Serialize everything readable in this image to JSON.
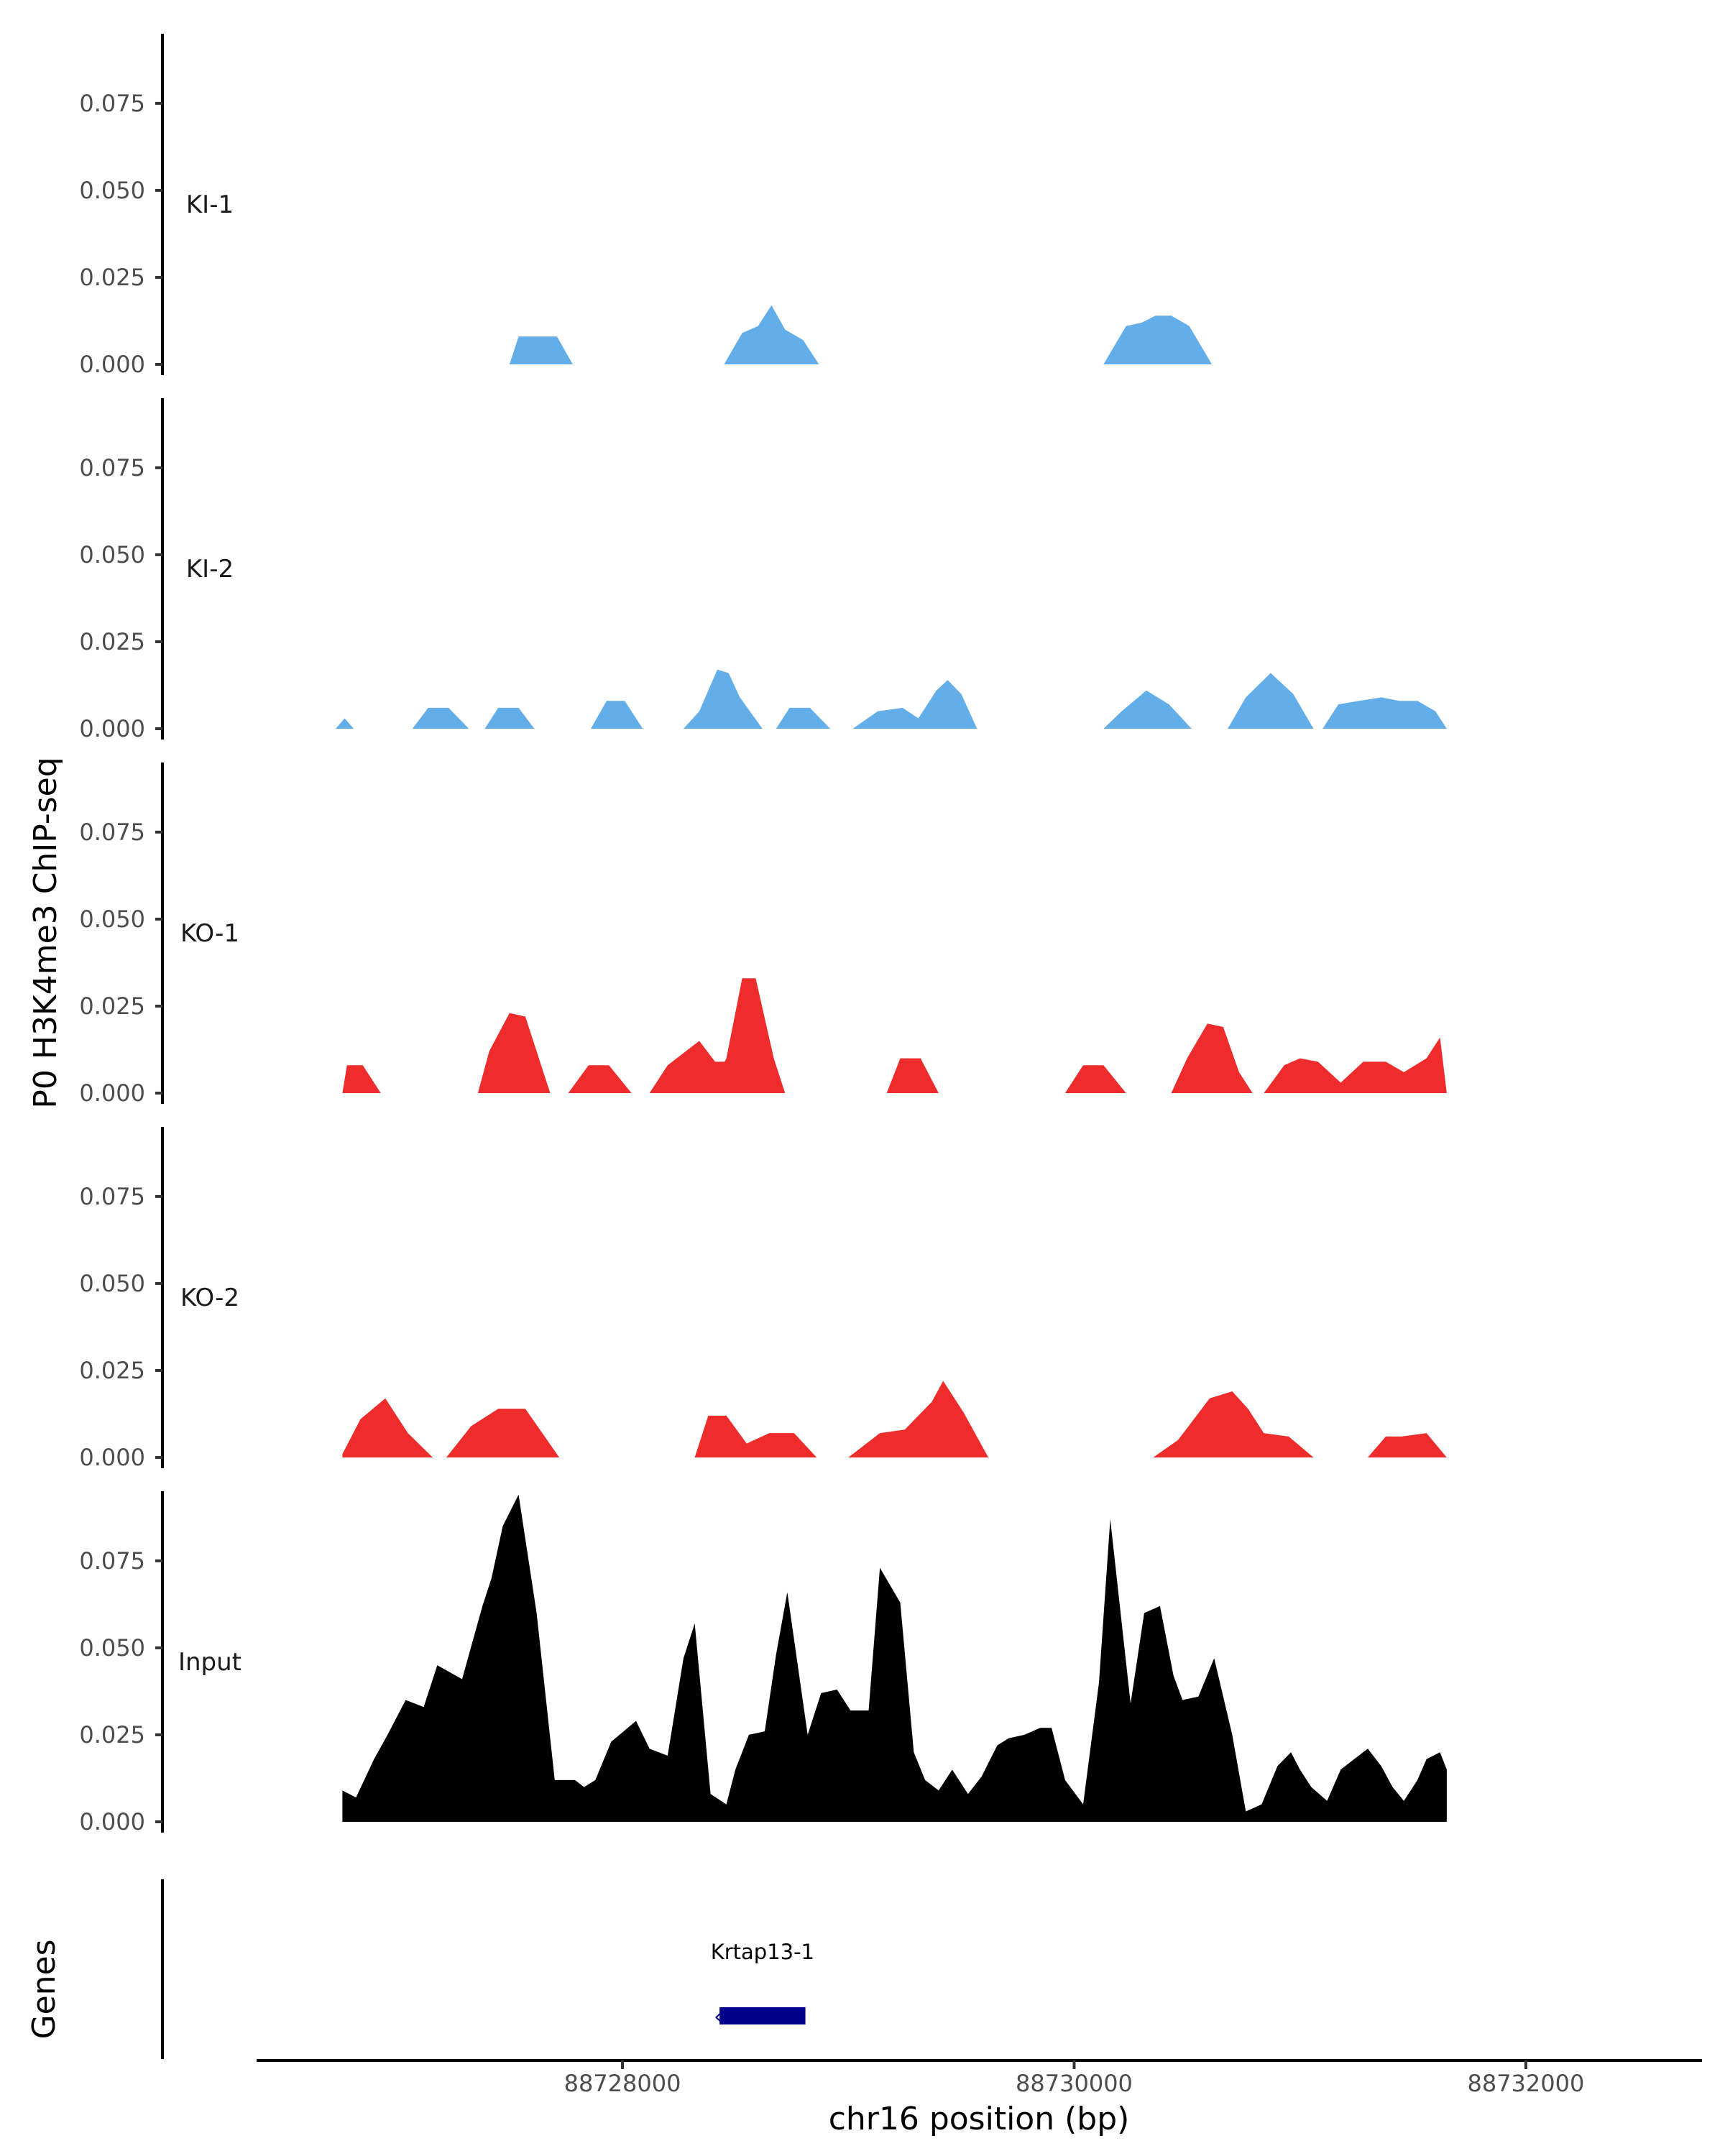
{
  "chart_data": {
    "type": "area",
    "title": "",
    "ylabel": "P0 H3K4me3 ChIP-seq",
    "xlabel": "chr16 position (bp)",
    "ylim": [
      0,
      0.095
    ],
    "xlim": [
      88726380,
      88732780
    ],
    "x_ticks": [
      88728000,
      88730000,
      88732000
    ],
    "x_tick_labels": [
      "88728000",
      "88730000",
      "88732000"
    ],
    "y_ticks": [
      0,
      0.025,
      0.05,
      0.075
    ],
    "y_tick_labels": [
      "0.000",
      "0.025",
      "0.050",
      "0.075"
    ],
    "colors": {
      "KI": "#63ade9",
      "KO": "#ee2c2c",
      "Input": "#000000",
      "gene": "#00008b"
    },
    "series": [
      {
        "name": "KI-1",
        "color": "#63ade9",
        "peaks": [
          {
            "x": [
              88727500,
              88727540,
              88727610,
              88727710,
              88727780
            ],
            "y": [
              0,
              0.008,
              0.008,
              0.008,
              0
            ]
          },
          {
            "x": [
              88728450,
              88728530,
              88728600,
              88728660,
              88728720,
              88728800,
              88728870
            ],
            "y": [
              0,
              0.009,
              0.011,
              0.017,
              0.01,
              0.007,
              0
            ]
          },
          {
            "x": [
              88730130,
              88730230,
              88730300,
              88730360,
              88730430,
              88730510,
              88730610
            ],
            "y": [
              0,
              0.011,
              0.012,
              0.014,
              0.014,
              0.011,
              0
            ]
          }
        ]
      },
      {
        "name": "KI-2",
        "color": "#63ade9",
        "peaks": [
          {
            "x": [
              88726730,
              88726770,
              88726810
            ],
            "y": [
              0,
              0.003,
              0
            ]
          },
          {
            "x": [
              88727070,
              88727140,
              88727230,
              88727320
            ],
            "y": [
              0,
              0.006,
              0.006,
              0
            ]
          },
          {
            "x": [
              88727390,
              88727450,
              88727540,
              88727610
            ],
            "y": [
              0,
              0.006,
              0.006,
              0
            ]
          },
          {
            "x": [
              88727860,
              88727930,
              88728010,
              88728090
            ],
            "y": [
              0,
              0.008,
              0.008,
              0
            ]
          },
          {
            "x": [
              88728270,
              88728340,
              88728420,
              88728470,
              88728520,
              88728620
            ],
            "y": [
              0,
              0.005,
              0.017,
              0.016,
              0.009,
              0
            ]
          },
          {
            "x": [
              88728680,
              88728740,
              88728830,
              88728920
            ],
            "y": [
              0,
              0.006,
              0.006,
              0
            ]
          },
          {
            "x": [
              88729020,
              88729130,
              88729240,
              88729310,
              88729390,
              88729440,
              88729500,
              88729570
            ],
            "y": [
              0,
              0.005,
              0.006,
              0.003,
              0.011,
              0.014,
              0.01,
              0
            ]
          },
          {
            "x": [
              88730130,
              88730210,
              88730320,
              88730420,
              88730520
            ],
            "y": [
              0,
              0.005,
              0.011,
              0.007,
              0
            ]
          },
          {
            "x": [
              88730680,
              88730760,
              88730870,
              88730970,
              88731060
            ],
            "y": [
              0,
              0.009,
              0.016,
              0.01,
              0
            ]
          },
          {
            "x": [
              88731100,
              88731170,
              88731260,
              88731360,
              88731440,
              88731520,
              88731600,
              88731650
            ],
            "y": [
              0,
              0.007,
              0.008,
              0.009,
              0.008,
              0.008,
              0.005,
              0
            ]
          }
        ]
      },
      {
        "name": "KO-1",
        "color": "#ee2c2c",
        "peaks": [
          {
            "x": [
              88726760,
              88726780,
              88726850,
              88726930
            ],
            "y": [
              0,
              0.008,
              0.008,
              0
            ]
          },
          {
            "x": [
              88727360,
              88727410,
              88727500,
              88727570,
              88727640,
              88727680
            ],
            "y": [
              0,
              0.012,
              0.023,
              0.022,
              0.008,
              0
            ]
          },
          {
            "x": [
              88727760,
              88727850,
              88727940,
              88728040
            ],
            "y": [
              0,
              0.008,
              0.008,
              0
            ]
          },
          {
            "x": [
              88728120,
              88728200,
              88728340,
              88728410,
              88728500,
              88728550
            ],
            "y": [
              0,
              0.008,
              0.015,
              0.009,
              0.009,
              0
            ]
          },
          {
            "x": [
              88728380,
              88728460,
              88728530,
              88728590,
              88728670,
              88728720
            ],
            "y": [
              0,
              0.01,
              0.033,
              0.033,
              0.01,
              0
            ]
          },
          {
            "x": [
              88729170,
              88729230,
              88729320,
              88729400
            ],
            "y": [
              0,
              0.01,
              0.01,
              0
            ]
          },
          {
            "x": [
              88729960,
              88730040,
              88730130,
              88730230
            ],
            "y": [
              0,
              0.008,
              0.008,
              0
            ]
          },
          {
            "x": [
              88730430,
              88730500,
              88730590,
              88730660,
              88730730,
              88730790
            ],
            "y": [
              0,
              0.01,
              0.02,
              0.019,
              0.006,
              0
            ]
          },
          {
            "x": [
              88730840,
              88730930,
              88731000,
              88731080,
              88731180,
              88731280,
              88731380,
              88731460,
              88731560,
              88731620,
              88731650
            ],
            "y": [
              0,
              0.008,
              0.01,
              0.009,
              0.003,
              0.009,
              0.009,
              0.006,
              0.01,
              0.016,
              0
            ]
          }
        ]
      },
      {
        "name": "KO-2",
        "color": "#ee2c2c",
        "peaks": [
          {
            "x": [
              88726760,
              88726840,
              88726950,
              88727050,
              88727160
            ],
            "y": [
              0.001,
              0.011,
              0.017,
              0.007,
              0
            ]
          },
          {
            "x": [
              88727220,
              88727330,
              88727450,
              88727570,
              88727720
            ],
            "y": [
              0,
              0.009,
              0.014,
              0.014,
              0
            ]
          },
          {
            "x": [
              88728320,
              88728380,
              88728460,
              88728550,
              88728650,
              88728760,
              88728860
            ],
            "y": [
              0,
              0.012,
              0.012,
              0.004,
              0.007,
              0.007,
              0
            ]
          },
          {
            "x": [
              88729000,
              88729140,
              88729250,
              88729370,
              88729420,
              88729510,
              88729620
            ],
            "y": [
              0,
              0.007,
              0.008,
              0.016,
              0.022,
              0.013,
              0
            ]
          },
          {
            "x": [
              88730350,
              88730460,
              88730600,
              88730700,
              88730770,
              88730840,
              88730950,
              88731060
            ],
            "y": [
              0,
              0.005,
              0.017,
              0.019,
              0.014,
              0.007,
              0.006,
              0
            ]
          },
          {
            "x": [
              88731300,
              88731380,
              88731450,
              88731560,
              88731650
            ],
            "y": [
              0,
              0.006,
              0.006,
              0.007,
              0
            ]
          }
        ]
      },
      {
        "name": "Input",
        "color": "#000000",
        "x": [
          88726760,
          88726820,
          88726900,
          88726960,
          88727040,
          88727120,
          88727180,
          88727290,
          88727380,
          88727420,
          88727470,
          88727540,
          88727620,
          88727700,
          88727790,
          88727830,
          88727880,
          88727950,
          88728060,
          88728120,
          88728200,
          88728270,
          88728320,
          88728390,
          88728460,
          88728500,
          88728560,
          88728630,
          88728680,
          88728730,
          88728820,
          88728880,
          88728950,
          88729010,
          88729090,
          88729140,
          88729230,
          88729290,
          88729340,
          88729400,
          88729460,
          88729530,
          88729590,
          88729660,
          88729710,
          88729780,
          88729850,
          88729900,
          88729960,
          88730040,
          88730110,
          88730160,
          88730250,
          88730310,
          88730380,
          88730440,
          88730480,
          88730550,
          88730620,
          88730700,
          88730760,
          88730830,
          88730900,
          88730960,
          88731000,
          88731050,
          88731120,
          88731180,
          88731240,
          88731300,
          88731360,
          88731410,
          88731460,
          88731520,
          88731560,
          88731620,
          88731650
        ],
        "y": [
          0.009,
          0.007,
          0.018,
          0.025,
          0.035,
          0.033,
          0.045,
          0.041,
          0.062,
          0.07,
          0.085,
          0.094,
          0.06,
          0.012,
          0.012,
          0.01,
          0.012,
          0.023,
          0.029,
          0.021,
          0.019,
          0.047,
          0.057,
          0.008,
          0.005,
          0.015,
          0.025,
          0.026,
          0.048,
          0.066,
          0.025,
          0.037,
          0.038,
          0.032,
          0.032,
          0.073,
          0.063,
          0.02,
          0.012,
          0.009,
          0.015,
          0.008,
          0.013,
          0.022,
          0.024,
          0.025,
          0.027,
          0.027,
          0.012,
          0.005,
          0.04,
          0.087,
          0.034,
          0.06,
          0.062,
          0.042,
          0.035,
          0.036,
          0.047,
          0.025,
          0.003,
          0.005,
          0.016,
          0.02,
          0.015,
          0.01,
          0.006,
          0.015,
          0.018,
          0.021,
          0.016,
          0.01,
          0.006,
          0.012,
          0.018,
          0.02,
          0.015
        ]
      }
    ],
    "genes": {
      "title": "Genes",
      "items": [
        {
          "name": "Krtap13-1",
          "start": 88728430,
          "end": 88728810,
          "strand": "-"
        }
      ]
    }
  }
}
